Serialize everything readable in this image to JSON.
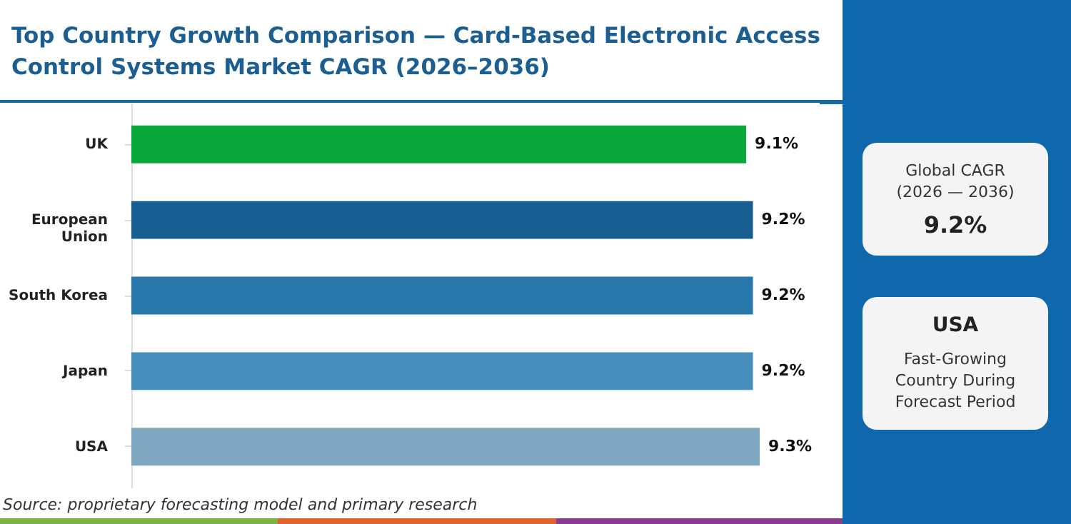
{
  "chart_data": {
    "type": "bar",
    "orientation": "horizontal",
    "title": "Top Country Growth Comparison — Card-Based Electronic Access Control Systems Market CAGR (2026–2036)",
    "categories": [
      "UK",
      "European Union",
      "South Korea",
      "Japan",
      "USA"
    ],
    "values": [
      9.1,
      9.2,
      9.2,
      9.2,
      9.3
    ],
    "colors": [
      "#0aa83a",
      "#175f92",
      "#2878ab",
      "#4790bd",
      "#7fa7c0"
    ],
    "value_labels": [
      "9.1%",
      "9.2%",
      "9.2%",
      "9.2%",
      "9.3%"
    ],
    "annotations": [
      "Global CAGR (2026 — 2036)",
      "9.2%",
      "USA",
      "Fast-Growing Country During Forecast Period",
      "Source: proprietary forecasting model and primary research"
    ]
  }
}
